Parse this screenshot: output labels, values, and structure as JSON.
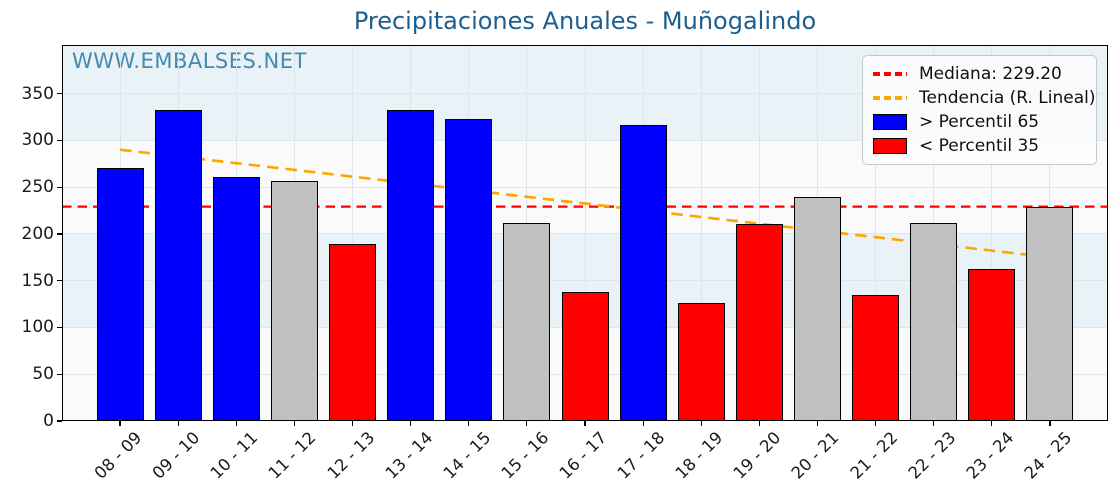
{
  "header": {
    "title": "Precipitaciones Anuales - Muñogalindo",
    "title_color": "#1c5f8e"
  },
  "watermark": {
    "text": "WWW.EMBALSES.NET",
    "color": "#4789ae"
  },
  "legend": {
    "position": "upper-right",
    "items": [
      {
        "label": "Mediana: 229.20",
        "type": "dash",
        "color": "#ff0000"
      },
      {
        "label": "Tendencia (R. Lineal)",
        "type": "dash",
        "color": "#ffa500"
      },
      {
        "label": "> Percentil 65",
        "type": "patch",
        "color": "#0000ff"
      },
      {
        "label": "< Percentil 35",
        "type": "patch",
        "color": "#ff0000"
      }
    ]
  },
  "chart_data": {
    "type": "bar",
    "title": "Precipitaciones Anuales - Muñogalindo",
    "xlabel": "",
    "ylabel": "",
    "categories": [
      "08 - 09",
      "09 - 10",
      "10 - 11",
      "11 - 12",
      "12 - 13",
      "13 - 14",
      "14 - 15",
      "15 - 16",
      "16 - 17",
      "17 - 18",
      "18 - 19",
      "19 - 20",
      "20 - 21",
      "21 - 22",
      "22 - 23",
      "23 - 24",
      "24 - 25"
    ],
    "values": [
      271,
      332,
      261,
      257,
      189,
      332,
      323,
      212,
      138,
      316,
      126,
      211,
      240,
      135,
      212,
      162,
      229.2
    ],
    "bar_color_classes": [
      "blue",
      "blue",
      "blue",
      "gray",
      "red",
      "blue",
      "blue",
      "gray",
      "red",
      "blue",
      "red",
      "red",
      "gray",
      "red",
      "gray",
      "red",
      "gray"
    ],
    "color_map": {
      "blue": "#0000ff",
      "red": "#ff0000",
      "gray": "#c0c0c0"
    },
    "bar_edge_color": "#000000",
    "ylim": [
      0,
      402
    ],
    "yticks": [
      0,
      50,
      100,
      150,
      200,
      250,
      300,
      350
    ],
    "grid": true,
    "gridline_color": "#dce5eb",
    "median_line": {
      "value": 229.2,
      "color": "#ff0000",
      "style": "dashed",
      "label": "Mediana: 229.20"
    },
    "trend_line": {
      "label": "Tendencia (R. Lineal)",
      "start_value": 290,
      "end_value": 175,
      "color": "#ffa500",
      "style": "dashed"
    },
    "background_bands": {
      "base_color": "#fafafa",
      "stripe_color": "#e9f2f7",
      "stripe_ranges": [
        [
          100,
          200
        ],
        [
          300,
          402
        ]
      ]
    },
    "legend_entries": [
      "Mediana: 229.20",
      "Tendencia (R. Lineal)",
      "> Percentil 65",
      "< Percentil 35"
    ]
  }
}
